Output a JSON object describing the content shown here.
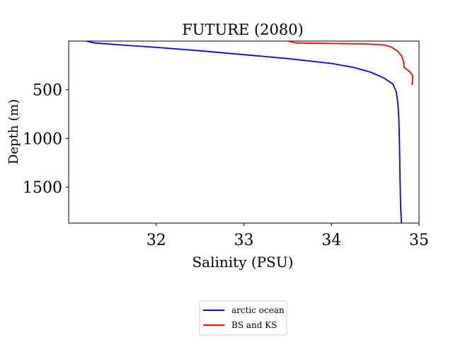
{
  "chart_data": {
    "type": "line",
    "title": "FUTURE (2080)",
    "xlabel": "Salinity (PSU)",
    "ylabel": "Depth (m)",
    "xlim": [
      31.0,
      35.0
    ],
    "ylim": [
      1870,
      0
    ],
    "y_inverted": true,
    "xticks": [
      32,
      33,
      34,
      35
    ],
    "yticks": [
      500,
      1000,
      1500
    ],
    "grid": false,
    "legend_position": "below",
    "series": [
      {
        "name": "arctic ocean",
        "color": "#0000ff",
        "x": [
          31.2,
          31.3,
          31.6,
          32.0,
          32.5,
          33.0,
          33.5,
          34.0,
          34.25,
          34.45,
          34.6,
          34.7,
          34.74,
          34.76,
          34.77,
          34.775,
          34.78,
          34.785,
          34.79,
          34.8
        ],
        "y": [
          0,
          20,
          40,
          65,
          100,
          140,
          180,
          230,
          270,
          320,
          380,
          440,
          520,
          650,
          800,
          1000,
          1250,
          1500,
          1700,
          1870
        ]
      },
      {
        "name": "BS and KS",
        "color": "#ff0000",
        "x": [
          33.5,
          33.6,
          34.0,
          34.4,
          34.6,
          34.68,
          34.75,
          34.8,
          34.82,
          34.83,
          34.9,
          34.93,
          34.92
        ],
        "y": [
          0,
          20,
          25,
          30,
          40,
          60,
          100,
          150,
          200,
          270,
          320,
          360,
          450
        ]
      }
    ]
  }
}
